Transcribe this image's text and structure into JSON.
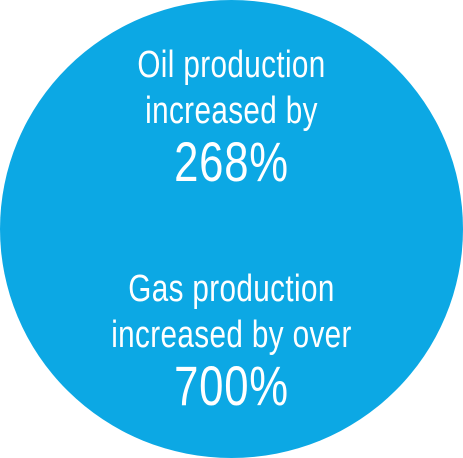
{
  "background_color": "#ffffff",
  "circle_color": "#0ca8e4",
  "text_color": "#ffffff",
  "oil": {
    "line1": "Oil production",
    "line2": "increased by",
    "value": "268%"
  },
  "gas": {
    "line1": "Gas production",
    "line2": "increased by over",
    "value": "700%"
  }
}
